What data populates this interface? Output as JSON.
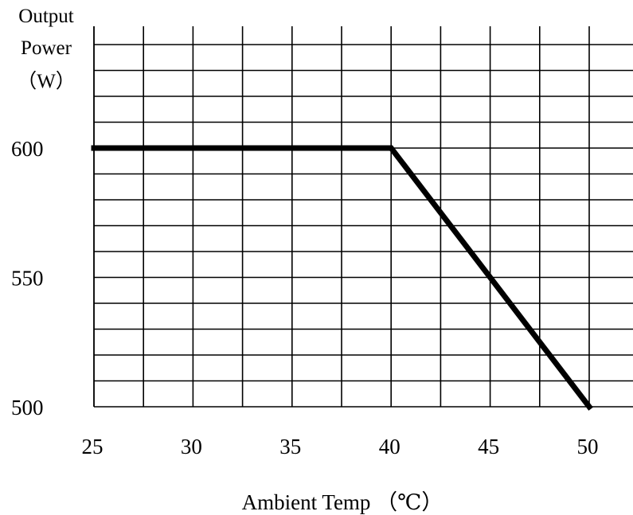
{
  "chart_data": {
    "type": "line",
    "ylabel_lines": [
      "Output",
      "Power",
      "（W）"
    ],
    "xlabel": "Ambient Temp （℃）",
    "xlim": [
      25,
      50
    ],
    "ylim": [
      500,
      620
    ],
    "x_ticks": [
      25,
      30,
      35,
      40,
      45,
      50
    ],
    "x_tick_labels": [
      "25",
      "30",
      "35",
      "40",
      "45",
      "50"
    ],
    "y_ticks": [
      500,
      550,
      600
    ],
    "y_tick_labels": [
      "500",
      "550",
      "600"
    ],
    "grid": true,
    "series": [
      {
        "x": [
          25,
          40,
          50
        ],
        "y": [
          600,
          600,
          500
        ]
      }
    ]
  }
}
